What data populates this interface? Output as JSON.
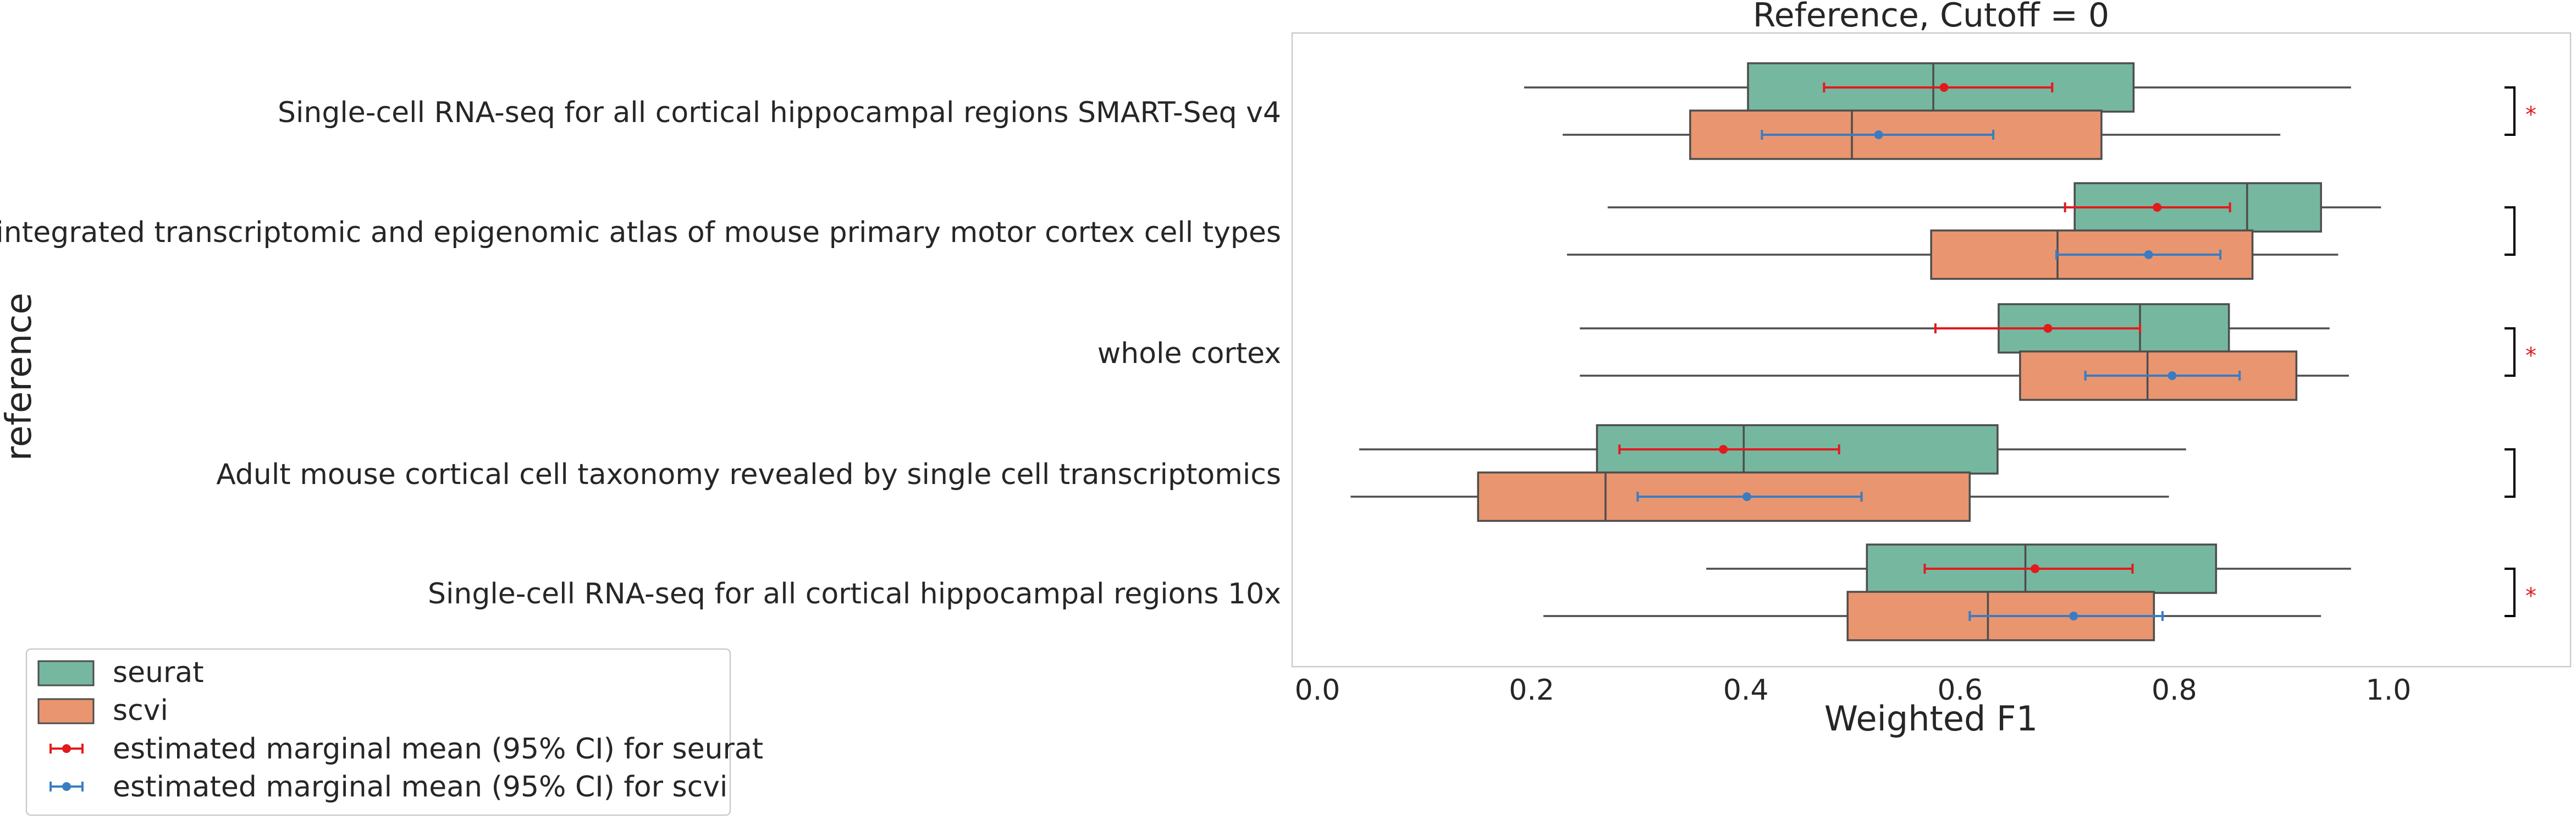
{
  "chart_data": {
    "type": "boxplot",
    "title": "Reference, Cutoff = 0",
    "xlabel": "Weighted F1",
    "ylabel": "reference",
    "xlim": [
      -0.04,
      1.14
    ],
    "xticks": [
      0.0,
      0.2,
      0.4,
      0.6,
      0.8,
      1.0
    ],
    "xtick_labels": [
      "0.0",
      "0.2",
      "0.4",
      "0.6",
      "0.8",
      "1.0"
    ],
    "grid": false,
    "legend_position": "bottom-left",
    "categories": [
      "Single-cell RNA-seq for all cortical  hippocampal regions SMART-Seq v4",
      "An integrated transcriptomic and epigenomic atlas of mouse primary motor cortex cell types",
      "whole cortex",
      "Adult mouse cortical cell taxonomy revealed by single cell transcriptomics",
      "Single-cell RNA-seq for all cortical  hippocampal regions 10x"
    ],
    "series": [
      {
        "name": "seurat",
        "color": "#76b7a0",
        "boxes": [
          {
            "whisker_low": 0.193,
            "q1": 0.402,
            "median": 0.575,
            "q3": 0.762,
            "whisker_high": 0.965
          },
          {
            "whisker_low": 0.271,
            "q1": 0.707,
            "median": 0.868,
            "q3": 0.937,
            "whisker_high": 0.993
          },
          {
            "whisker_low": 0.245,
            "q1": 0.636,
            "median": 0.768,
            "q3": 0.851,
            "whisker_high": 0.945
          },
          {
            "whisker_low": 0.039,
            "q1": 0.261,
            "median": 0.398,
            "q3": 0.635,
            "whisker_high": 0.811
          },
          {
            "whisker_low": 0.363,
            "q1": 0.513,
            "median": 0.661,
            "q3": 0.839,
            "whisker_high": 0.965
          }
        ]
      },
      {
        "name": "scvi",
        "color": "#e9956f",
        "boxes": [
          {
            "whisker_low": 0.229,
            "q1": 0.348,
            "median": 0.499,
            "q3": 0.732,
            "whisker_high": 0.899
          },
          {
            "whisker_low": 0.233,
            "q1": 0.573,
            "median": 0.691,
            "q3": 0.873,
            "whisker_high": 0.953
          },
          {
            "whisker_low": 0.245,
            "q1": 0.656,
            "median": 0.775,
            "q3": 0.914,
            "whisker_high": 0.963
          },
          {
            "whisker_low": 0.031,
            "q1": 0.15,
            "median": 0.269,
            "q3": 0.609,
            "whisker_high": 0.795
          },
          {
            "whisker_low": 0.211,
            "q1": 0.495,
            "median": 0.626,
            "q3": 0.781,
            "whisker_high": 0.937
          }
        ]
      }
    ],
    "marginal_means": [
      {
        "name": "estimated marginal mean (95% CI) for seurat",
        "color": "#e31a1c",
        "points": [
          {
            "mean": 0.585,
            "ci_low": 0.473,
            "ci_high": 0.686
          },
          {
            "mean": 0.784,
            "ci_low": 0.698,
            "ci_high": 0.852
          },
          {
            "mean": 0.682,
            "ci_low": 0.577,
            "ci_high": 0.768
          },
          {
            "mean": 0.379,
            "ci_low": 0.282,
            "ci_high": 0.487
          },
          {
            "mean": 0.67,
            "ci_low": 0.567,
            "ci_high": 0.761
          }
        ]
      },
      {
        "name": "estimated marginal mean (95% CI) for scvi",
        "color": "#3a7cc2",
        "points": [
          {
            "mean": 0.524,
            "ci_low": 0.415,
            "ci_high": 0.631
          },
          {
            "mean": 0.776,
            "ci_low": 0.69,
            "ci_high": 0.843
          },
          {
            "mean": 0.798,
            "ci_low": 0.717,
            "ci_high": 0.861
          },
          {
            "mean": 0.401,
            "ci_low": 0.299,
            "ci_high": 0.508
          },
          {
            "mean": 0.706,
            "ci_low": 0.609,
            "ci_high": 0.789
          }
        ]
      }
    ],
    "significance": [
      "*",
      "",
      "*",
      "",
      "*"
    ],
    "significance_color": "#e31a1c"
  }
}
